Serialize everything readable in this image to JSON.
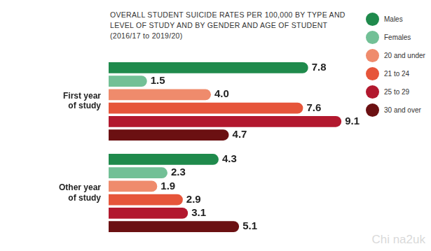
{
  "chart_data": {
    "type": "bar",
    "orientation": "horizontal",
    "title": "OVERALL STUDENT SUICIDE RATES PER 100,000 BY TYPE AND LEVEL OF STUDY AND BY GENDER AND AGE OF STUDENT (2016/17 to 2019/20)",
    "categories": [
      "First year of study",
      "Other year of study"
    ],
    "series": [
      {
        "name": "Males",
        "color": "#1f8a4c",
        "values": [
          7.8,
          4.3
        ]
      },
      {
        "name": "Females",
        "color": "#72c096",
        "values": [
          1.5,
          2.3
        ]
      },
      {
        "name": "20 and under",
        "color": "#ef8b6c",
        "values": [
          4.0,
          1.9
        ],
        "value_labels": [
          "4.0",
          "1.9"
        ]
      },
      {
        "name": "21 to 24",
        "color": "#e6553a",
        "values": [
          7.6,
          2.9
        ]
      },
      {
        "name": "25 to 29",
        "color": "#b2182e",
        "values": [
          9.1,
          3.1
        ]
      },
      {
        "name": "30 and over",
        "color": "#6b1012",
        "values": [
          4.7,
          5.1
        ]
      }
    ],
    "xlim": [
      0,
      10
    ],
    "grid": false,
    "legend": "right",
    "data_labels": true,
    "tick_labels": "y",
    "annotations": [
      "Chi na2uk"
    ]
  }
}
